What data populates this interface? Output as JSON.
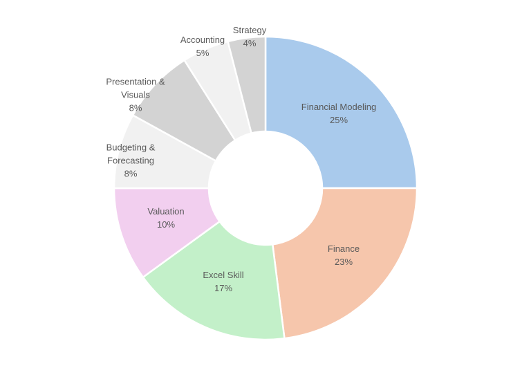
{
  "chart_data": {
    "type": "pie",
    "variant": "donut",
    "title": "",
    "legend": "none",
    "slices": [
      {
        "label_lines": [
          "Financial Modeling"
        ],
        "value": 25,
        "value_label": "25%",
        "color": "#A9CAEC"
      },
      {
        "label_lines": [
          "Finance"
        ],
        "value": 23,
        "value_label": "23%",
        "color": "#F6C6AC"
      },
      {
        "label_lines": [
          "Excel Skill"
        ],
        "value": 17,
        "value_label": "17%",
        "color": "#C3F0C9"
      },
      {
        "label_lines": [
          "Valuation"
        ],
        "value": 10,
        "value_label": "10%",
        "color": "#F2CFEF"
      },
      {
        "label_lines": [
          "Budgeting &",
          "Forecasting"
        ],
        "value": 8,
        "value_label": "8%",
        "color": "#F1F1F1"
      },
      {
        "label_lines": [
          "Presentation &",
          "Visuals"
        ],
        "value": 8,
        "value_label": "8%",
        "color": "#D3D3D3"
      },
      {
        "label_lines": [
          "Accounting"
        ],
        "value": 5,
        "value_label": "5%",
        "color": "#F1F1F1"
      },
      {
        "label_lines": [
          "Strategy"
        ],
        "value": 4,
        "value_label": "4%",
        "color": "#D3D3D3"
      }
    ]
  }
}
